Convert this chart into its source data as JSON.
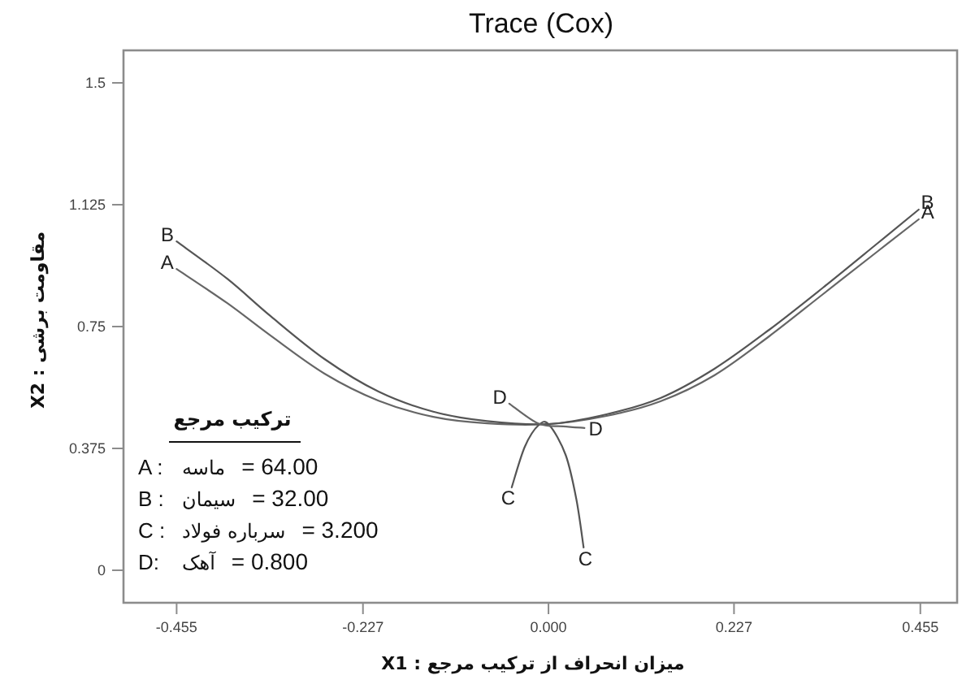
{
  "chart_data": {
    "type": "line",
    "title": "Trace (Cox)",
    "xlabel": "میزان انحراف از ترکیب مرجع : X1",
    "ylabel": "مقاومت برشی : X2",
    "xlim": [
      -0.52,
      0.5
    ],
    "ylim": [
      -0.1,
      1.6
    ],
    "xticks": [
      -0.455,
      -0.227,
      {
        "value": 0,
        "label": "0.000"
      },
      0.227,
      0.455
    ],
    "yticks": [
      0,
      0.375,
      0.75,
      1.125,
      1.5
    ],
    "grid": false,
    "marker": "none",
    "line_style": "solid",
    "series": [
      {
        "name": "A",
        "color": "#666666",
        "x": [
          -0.455,
          -0.393,
          -0.34,
          -0.274,
          -0.208,
          -0.141,
          -0.075,
          0,
          0.071,
          0.137,
          0.203,
          0.27,
          0.336,
          0.402,
          0.453
        ],
        "values": [
          0.927,
          0.822,
          0.722,
          0.605,
          0.522,
          0.472,
          0.452,
          0.45,
          0.475,
          0.52,
          0.6,
          0.72,
          0.85,
          0.98,
          1.08
        ]
      },
      {
        "name": "B",
        "color": "#555555",
        "x": [
          -0.455,
          -0.393,
          -0.34,
          -0.274,
          -0.208,
          -0.141,
          -0.075,
          0,
          0.071,
          0.137,
          0.203,
          0.27,
          0.336,
          0.402,
          0.453
        ],
        "values": [
          1.012,
          0.897,
          0.782,
          0.65,
          0.55,
          0.488,
          0.459,
          0.45,
          0.48,
          0.53,
          0.62,
          0.74,
          0.87,
          1.005,
          1.11
        ]
      },
      {
        "name": "C",
        "color": "#555555",
        "x": [
          -0.045,
          -0.029,
          -0.012,
          0.001,
          0.021,
          0.034,
          0.043
        ],
        "values": [
          0.255,
          0.38,
          0.447,
          0.447,
          0.355,
          0.22,
          0.07
        ]
      },
      {
        "name": "D",
        "color": "#666666",
        "x": [
          -0.048,
          -0.012,
          0.018,
          0.044
        ],
        "values": [
          0.513,
          0.451,
          0.443,
          0.438
        ]
      }
    ],
    "annotations": [
      "ترکیب مرجع",
      "A :",
      "ماسه",
      "= 64.00",
      "B :",
      "سیمان",
      "= 32.00",
      "C :",
      "سرباره فولاد",
      "= 3.200",
      "D:",
      "آهک",
      "= 0.800"
    ]
  }
}
